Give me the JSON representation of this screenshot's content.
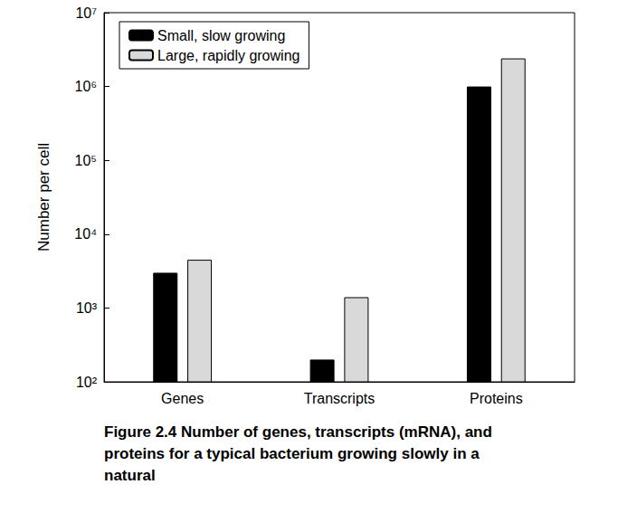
{
  "chart_data": {
    "type": "bar",
    "categories": [
      "Genes",
      "Transcripts",
      "Proteins"
    ],
    "series": [
      {
        "name": "Small, slow growing",
        "color": "#000000",
        "values": [
          3000,
          200,
          1000000
        ]
      },
      {
        "name": "Large, rapidly growing",
        "color": "#d9d9d9",
        "values": [
          4500,
          1400,
          2400000
        ]
      }
    ],
    "ylabel": "Number per cell",
    "log": "y",
    "ylim": [
      100,
      10000000
    ],
    "yticks": [
      {
        "value": 100,
        "label": "10²"
      },
      {
        "value": 1000,
        "label": "10³"
      },
      {
        "value": 10000,
        "label": "10⁴"
      },
      {
        "value": 100000,
        "label": "10⁵"
      },
      {
        "value": 1000000,
        "label": "10⁶"
      },
      {
        "value": 10000000,
        "label": "10⁷"
      }
    ],
    "grid": false,
    "legend": "upper left"
  },
  "caption": "Figure 2.4 Number of genes, transcripts (mRNA), and proteins for a typical bacterium growing slowly in a natural"
}
